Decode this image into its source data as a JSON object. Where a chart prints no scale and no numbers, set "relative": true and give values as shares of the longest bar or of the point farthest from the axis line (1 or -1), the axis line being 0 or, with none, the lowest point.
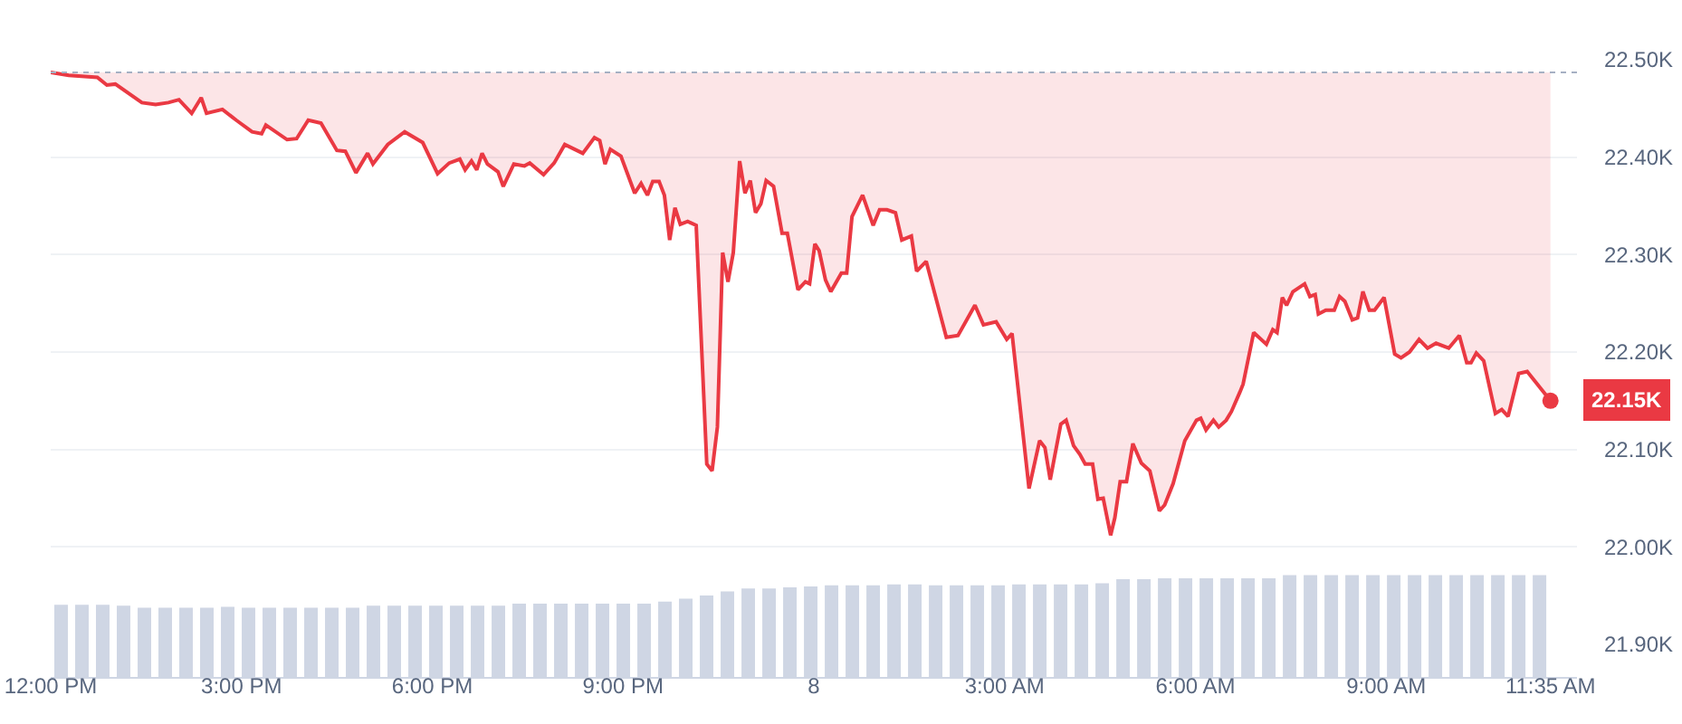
{
  "chart_data": [
    {
      "type": "line",
      "color": "#ea3943",
      "x": [
        "--01-07T12:00",
        "--01-07T12:17",
        "--01-07T12:44",
        "--01-07T12:53",
        "--01-07T13:01",
        "--01-07T13:26",
        "--01-07T13:39",
        "--01-07T13:51",
        "--01-07T14:01",
        "--01-07T14:13",
        "--01-07T14:22",
        "--01-07T14:27",
        "--01-07T14:42",
        "--01-07T14:55",
        "--01-07T15:10",
        "--01-07T15:19",
        "--01-07T15:23",
        "--01-07T15:43",
        "--01-07T15:52",
        "--01-07T16:03",
        "--01-07T16:15",
        "--01-07T16:30",
        "--01-07T16:38",
        "--01-07T16:48",
        "--01-07T16:59",
        "--01-07T17:04",
        "--01-07T17:18",
        "--01-07T17:34",
        "--01-07T17:51",
        "--01-07T18:05",
        "--01-07T18:16",
        "--01-07T18:26",
        "--01-07T18:31",
        "--01-07T18:37",
        "--01-07T18:42",
        "--01-07T18:47",
        "--01-07T18:52",
        "--01-07T19:02",
        "--01-07T19:07",
        "--01-07T19:17",
        "--01-07T19:27",
        "--01-07T19:32",
        "--01-07T19:45",
        "--01-07T19:55",
        "--01-07T20:05",
        "--01-07T20:22",
        "--01-07T20:33",
        "--01-07T20:38",
        "--01-07T20:43",
        "--01-07T20:48",
        "--01-07T20:58",
        "--01-07T21:11",
        "--01-07T21:17",
        "--01-07T21:23",
        "--01-07T21:28",
        "--01-07T21:34",
        "--01-07T21:39",
        "--01-07T21:44",
        "--01-07T21:49",
        "--01-07T21:54",
        "--01-07T22:01",
        "--01-07T22:09",
        "--01-07T22:19",
        "--01-07T22:24",
        "--01-07T22:29",
        "--01-07T22:34",
        "--01-07T22:39",
        "--01-07T22:44",
        "--01-07T22:50",
        "--01-07T22:55",
        "--01-07T23:00",
        "--01-07T23:05",
        "--01-07T23:10",
        "--01-07T23:15",
        "--01-07T23:22",
        "--01-07T23:30",
        "--01-07T23:35",
        "--01-07T23:45",
        "--01-07T23:52",
        "--01-07T23:56",
        "--01-08T00:01",
        "--01-08T00:05",
        "--01-08T00:11",
        "--01-08T00:16",
        "--01-08T00:26",
        "--01-08T00:31",
        "--01-08T00:36",
        "--01-08T00:46",
        "--01-08T00:56",
        "--01-08T01:02",
        "--01-08T01:09",
        "--01-08T01:17",
        "--01-08T01:23",
        "--01-08T01:32",
        "--01-08T01:37",
        "--01-08T01:46",
        "--01-08T02:05",
        "--01-08T02:16",
        "--01-08T02:32",
        "--01-08T02:40",
        "--01-08T02:52",
        "--01-08T03:02",
        "--01-08T03:07",
        "--01-08T03:23",
        "--01-08T03:33",
        "--01-08T03:38",
        "--01-08T03:43",
        "--01-08T03:53",
        "--01-08T03:58",
        "--01-08T04:05",
        "--01-08T04:11",
        "--01-08T04:16",
        "--01-08T04:23",
        "--01-08T04:28",
        "--01-08T04:33",
        "--01-08T04:40",
        "--01-08T04:44",
        "--01-08T04:49",
        "--01-08T04:55",
        "--01-08T05:01",
        "--01-08T05:09",
        "--01-08T05:17",
        "--01-08T05:26",
        "--01-08T05:31",
        "--01-08T05:39",
        "--01-08T05:50",
        "--01-08T06:01",
        "--01-08T06:05",
        "--01-08T06:10",
        "--01-08T06:17",
        "--01-08T06:22",
        "--01-08T06:29",
        "--01-08T06:34",
        "--01-08T06:42",
        "--01-08T06:45",
        "--01-08T06:55",
        "--01-08T07:07",
        "--01-08T07:13",
        "--01-08T07:17",
        "--01-08T07:22",
        "--01-08T07:26",
        "--01-08T07:32",
        "--01-08T07:43",
        "--01-08T07:48",
        "--01-08T07:53",
        "--01-08T07:56",
        "--01-08T08:03",
        "--01-08T08:11",
        "--01-08T08:16",
        "--01-08T08:21",
        "--01-08T08:28",
        "--01-08T08:33",
        "--01-08T08:38",
        "--01-08T08:44",
        "--01-08T08:49",
        "--01-08T08:58",
        "--01-08T09:08",
        "--01-08T09:14",
        "--01-08T09:22",
        "--01-08T09:31",
        "--01-08T09:39",
        "--01-08T09:47",
        "--01-08T09:59",
        "--01-08T10:09",
        "--01-08T10:16",
        "--01-08T10:20",
        "--01-08T10:25",
        "--01-08T10:32",
        "--01-08T10:43",
        "--01-08T10:49",
        "--01-08T10:55",
        "--01-08T11:05",
        "--01-08T11:13",
        "--01-08T11:35"
      ],
      "values": [
        22487,
        22484,
        22482,
        22474,
        22475,
        22456,
        22454,
        22456,
        22459,
        22445,
        22461,
        22445,
        22449,
        22438,
        22426,
        22424,
        22433,
        22418,
        22419,
        22438,
        22435,
        22407,
        22406,
        22384,
        22404,
        22393,
        22413,
        22426,
        22415,
        22383,
        22394,
        22398,
        22387,
        22396,
        22387,
        22404,
        22393,
        22385,
        22370,
        22393,
        22391,
        22394,
        22382,
        22394,
        22413,
        22404,
        22420,
        22417,
        22393,
        22408,
        22401,
        22363,
        22373,
        22361,
        22375,
        22375,
        22361,
        22315,
        22348,
        22331,
        22334,
        22330,
        22085,
        22078,
        22123,
        22302,
        22272,
        22302,
        22396,
        22363,
        22376,
        22343,
        22352,
        22376,
        22370,
        22322,
        22322,
        22264,
        22272,
        22270,
        22311,
        22304,
        22274,
        22262,
        22281,
        22281,
        22339,
        22361,
        22330,
        22346,
        22346,
        22343,
        22315,
        22319,
        22283,
        22293,
        22215,
        22217,
        22248,
        22228,
        22231,
        22213,
        22219,
        22060,
        22109,
        22102,
        22069,
        22126,
        22130,
        22104,
        22095,
        22085,
        22085,
        22049,
        22050,
        22012,
        22030,
        22067,
        22067,
        22106,
        22086,
        22078,
        22037,
        22043,
        22065,
        22109,
        22130,
        22132,
        22120,
        22130,
        22123,
        22130,
        22139,
        22159,
        22167,
        22220,
        22208,
        22223,
        22220,
        22256,
        22248,
        22262,
        22270,
        22257,
        22259,
        22239,
        22243,
        22243,
        22257,
        22252,
        22233,
        22235,
        22262,
        22243,
        22243,
        22256,
        22198,
        22194,
        22200,
        22213,
        22204,
        22209,
        22204,
        22217,
        22189,
        22189,
        22199,
        22191,
        22137,
        22141,
        22134,
        22178,
        22180,
        22150
      ],
      "xlim": [
        "--01-07T12:00",
        "--01-08T12:00"
      ],
      "ylim": [
        21900,
        22500
      ],
      "xticks": [
        {
          "value": "--01-07T12:00",
          "label": "12:00 PM"
        },
        {
          "value": "--01-07T15:00",
          "label": "3:00 PM"
        },
        {
          "value": "--01-07T18:00",
          "label": "6:00 PM"
        },
        {
          "value": "--01-07T21:00",
          "label": "9:00 PM"
        },
        {
          "value": "--01-08",
          "label": "8"
        },
        {
          "value": "--01-08T03:00",
          "label": "3:00 AM"
        },
        {
          "value": "--01-08T06:00",
          "label": "6:00 AM"
        },
        {
          "value": "--01-08T09:00",
          "label": "9:00 AM"
        },
        {
          "value": "--01-08T11:35",
          "label": "11:35 AM"
        }
      ],
      "yticks": [
        {
          "value": 21900,
          "label": "21.90K"
        },
        {
          "value": 22000,
          "label": "22.00K"
        },
        {
          "value": 22100,
          "label": "22.10K"
        },
        {
          "value": 22200,
          "label": "22.20K"
        },
        {
          "value": 22300,
          "label": "22.30K"
        },
        {
          "value": 22400,
          "label": "22.40K"
        },
        {
          "value": 22500,
          "label": "22.50K"
        }
      ],
      "ref_lines": [
        {
          "axis": "y",
          "value": 22487,
          "color": "#a6b0c3",
          "line_style": "dotted"
        }
      ],
      "annotations": [
        {
          "text": "22.15K",
          "x": "--01-08T11:35",
          "y": 22150
        }
      ],
      "grid": "y",
      "line_style": "solid",
      "marker": "none"
    },
    {
      "type": "bar",
      "relative": true,
      "color": "#cfd6e4",
      "grid": false,
      "categories": [
        null,
        null,
        null,
        null,
        null,
        null,
        null,
        null,
        null,
        null,
        null,
        null,
        null,
        null,
        null,
        null,
        null,
        null,
        null,
        null,
        null,
        null,
        null,
        null,
        null,
        null,
        null,
        null,
        null,
        null,
        null,
        null,
        null,
        null,
        null,
        null,
        null,
        null,
        null,
        null,
        null,
        null,
        null,
        null,
        null,
        null,
        null,
        null,
        null,
        null,
        null,
        null,
        null,
        null,
        null,
        null,
        null,
        null,
        null,
        null,
        null,
        null,
        null,
        null,
        null,
        null,
        null,
        null,
        null,
        null,
        null,
        null
      ],
      "values": [
        0.71,
        0.71,
        0.71,
        0.7,
        0.68,
        0.68,
        0.68,
        0.68,
        0.69,
        0.68,
        0.68,
        0.68,
        0.68,
        0.68,
        0.68,
        0.7,
        0.7,
        0.7,
        0.7,
        0.7,
        0.7,
        0.7,
        0.72,
        0.72,
        0.72,
        0.72,
        0.72,
        0.72,
        0.72,
        0.74,
        0.77,
        0.8,
        0.84,
        0.87,
        0.87,
        0.88,
        0.89,
        0.9,
        0.9,
        0.9,
        0.91,
        0.91,
        0.9,
        0.9,
        0.9,
        0.9,
        0.91,
        0.91,
        0.91,
        0.91,
        0.92,
        0.96,
        0.96,
        0.97,
        0.97,
        0.97,
        0.97,
        0.97,
        0.97,
        1.0,
        1.0,
        1.0,
        1.0,
        1.0,
        1.0,
        1.0,
        1.0,
        1.0,
        1.0,
        1.0,
        1.0,
        1.0
      ]
    }
  ]
}
